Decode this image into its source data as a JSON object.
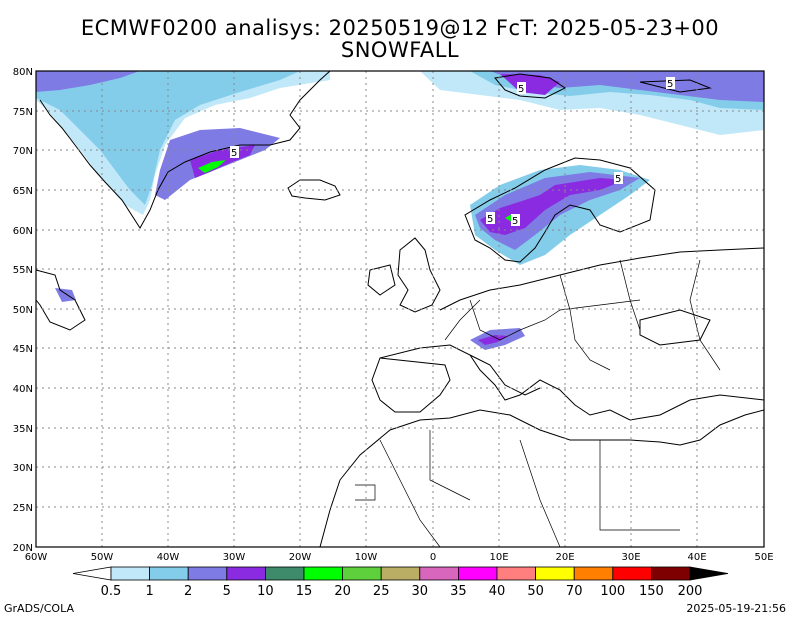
{
  "title_line1": "ECMWF0200 analisys: 20250519@12 FcT: 2025-05-23+00",
  "title_line2": "SNOWFALL",
  "map": {
    "lon_range": [
      -60,
      50
    ],
    "lat_range": [
      20,
      80
    ],
    "grid": true,
    "lat_labels": [
      "80N",
      "75N",
      "70N",
      "65N",
      "60N",
      "55N",
      "50N",
      "45N",
      "40N",
      "35N",
      "30N",
      "25N",
      "20N"
    ],
    "lon_labels": [
      "60W",
      "50W",
      "40W",
      "30W",
      "20W",
      "10W",
      "0",
      "10E",
      "20E",
      "30E",
      "40E",
      "50E"
    ],
    "contour_labels": [
      "5",
      "5",
      "5",
      "5",
      "5",
      "5"
    ]
  },
  "colorbar": {
    "labels": [
      "0.5",
      "1",
      "2",
      "5",
      "10",
      "15",
      "20",
      "25",
      "30",
      "35",
      "40",
      "50",
      "70",
      "100",
      "150",
      "200"
    ],
    "colors": [
      "#c0e8f8",
      "#84cdea",
      "#7f7be5",
      "#8a2be2",
      "#3d8b6b",
      "#00ff00",
      "#5ed03c",
      "#b9ae63",
      "#d866bd",
      "#ff00ff",
      "#ff7f7f",
      "#ffff00",
      "#ff7f00",
      "#ff0000",
      "#7f0000"
    ]
  },
  "footer_left": "GrADS/COLA",
  "footer_right": "2025-05-19-21:56"
}
